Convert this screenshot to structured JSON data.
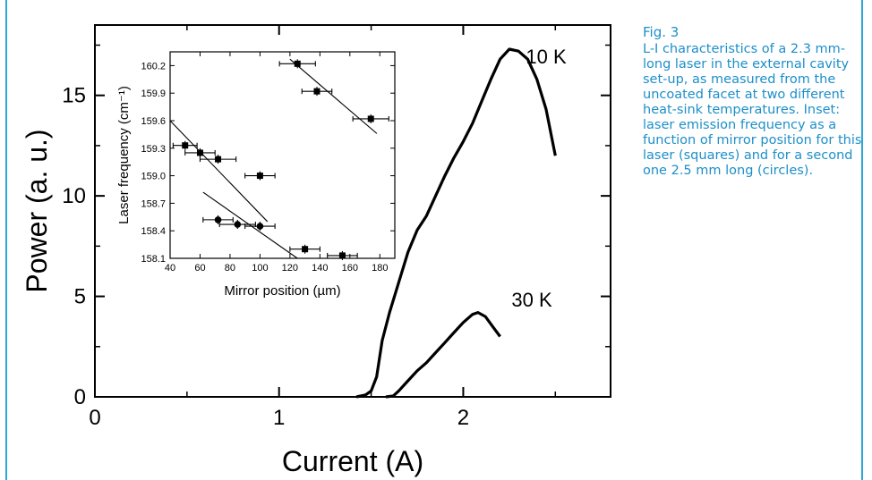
{
  "caption": {
    "figure_label": "Fig. 3",
    "text": "L-I characteristics of a 2.3 mm-long laser in the external cavity set-up, as measured from the uncoated facet at two different heat-sink temperatures. Inset: laser emission frequency as a function of mirror position for this laser (squares) and for a second one 2.5 mm long (circles)."
  },
  "colors": {
    "frame": "#2aa8d6",
    "caption": "#1d8fc9",
    "ink": "#000000"
  },
  "chart_data": [
    {
      "type": "line",
      "xlabel": "Current (A)",
      "ylabel": "Power (a. u.)",
      "xlim": [
        0,
        2.8
      ],
      "ylim": [
        0,
        18.5
      ],
      "xticks": [
        0,
        1,
        2
      ],
      "yticks": [
        0,
        5,
        10,
        15
      ],
      "grid": false,
      "series": [
        {
          "name": "10 K",
          "points": [
            [
              1.42,
              0
            ],
            [
              1.47,
              0.1
            ],
            [
              1.5,
              0.3
            ],
            [
              1.53,
              1.0
            ],
            [
              1.56,
              2.8
            ],
            [
              1.6,
              4.2
            ],
            [
              1.65,
              5.7
            ],
            [
              1.7,
              7.2
            ],
            [
              1.75,
              8.3
            ],
            [
              1.8,
              9.0
            ],
            [
              1.85,
              10.0
            ],
            [
              1.9,
              11.0
            ],
            [
              1.95,
              11.9
            ],
            [
              2.0,
              12.7
            ],
            [
              2.05,
              13.6
            ],
            [
              2.1,
              14.7
            ],
            [
              2.15,
              15.8
            ],
            [
              2.2,
              16.8
            ],
            [
              2.25,
              17.3
            ],
            [
              2.3,
              17.2
            ],
            [
              2.35,
              16.8
            ],
            [
              2.4,
              15.8
            ],
            [
              2.45,
              14.3
            ],
            [
              2.5,
              12.0
            ]
          ]
        },
        {
          "name": "30 K",
          "points": [
            [
              1.58,
              0
            ],
            [
              1.62,
              0.05
            ],
            [
              1.65,
              0.3
            ],
            [
              1.7,
              0.8
            ],
            [
              1.75,
              1.3
            ],
            [
              1.8,
              1.7
            ],
            [
              1.85,
              2.2
            ],
            [
              1.9,
              2.7
            ],
            [
              1.95,
              3.2
            ],
            [
              2.0,
              3.7
            ],
            [
              2.05,
              4.1
            ],
            [
              2.08,
              4.2
            ],
            [
              2.12,
              4.0
            ],
            [
              2.16,
              3.5
            ],
            [
              2.2,
              3.0
            ]
          ]
        }
      ]
    },
    {
      "type": "scatter",
      "xlabel": "Mirror position (µm)",
      "ylabel": "Laser frequency (cm⁻¹)",
      "xlim": [
        40,
        190
      ],
      "ylim": [
        158.1,
        160.35
      ],
      "xticks": [
        40,
        60,
        80,
        100,
        120,
        140,
        160,
        180
      ],
      "yticks": [
        158.1,
        158.4,
        158.7,
        159.0,
        159.3,
        159.6,
        159.9,
        160.2
      ],
      "series": [
        {
          "name": "squares",
          "marker": "square",
          "points": [
            [
              50,
              159.33
            ],
            [
              60,
              159.25
            ],
            [
              72,
              159.18
            ],
            [
              100,
              159.0
            ],
            [
              130,
              158.2
            ],
            [
              155,
              158.13
            ],
            [
              125,
              160.22
            ],
            [
              138,
              159.92
            ],
            [
              174,
              159.62
            ]
          ],
          "xerr": [
            8,
            10,
            12,
            10,
            10,
            10,
            12,
            10,
            12
          ]
        },
        {
          "name": "circles",
          "marker": "circle",
          "points": [
            [
              72,
              158.52
            ],
            [
              85,
              158.47
            ],
            [
              100,
              158.45
            ]
          ],
          "xerr": [
            10,
            12,
            10
          ]
        }
      ],
      "fit_lines": [
        [
          [
            40,
            159.6
          ],
          [
            105,
            158.5
          ]
        ],
        [
          [
            62,
            158.82
          ],
          [
            125,
            158.1
          ]
        ],
        [
          [
            120,
            160.27
          ],
          [
            178,
            159.46
          ]
        ]
      ]
    }
  ]
}
